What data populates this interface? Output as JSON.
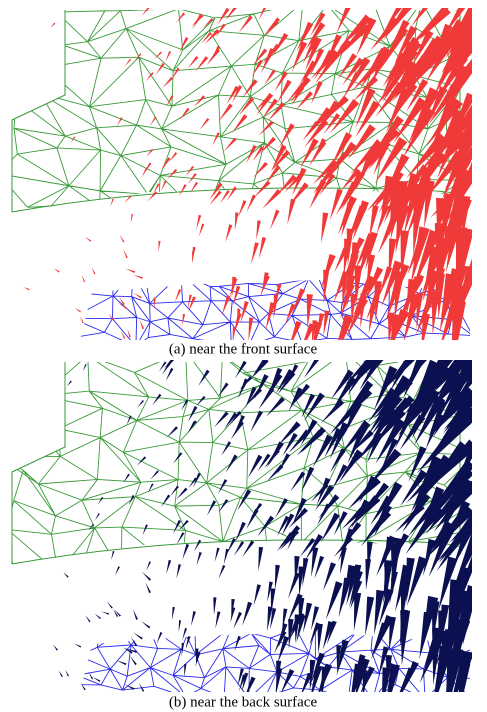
{
  "figure": {
    "panels": [
      {
        "caption": "(a) near the front surface"
      },
      {
        "caption": "(b) near the back surface"
      }
    ]
  }
}
